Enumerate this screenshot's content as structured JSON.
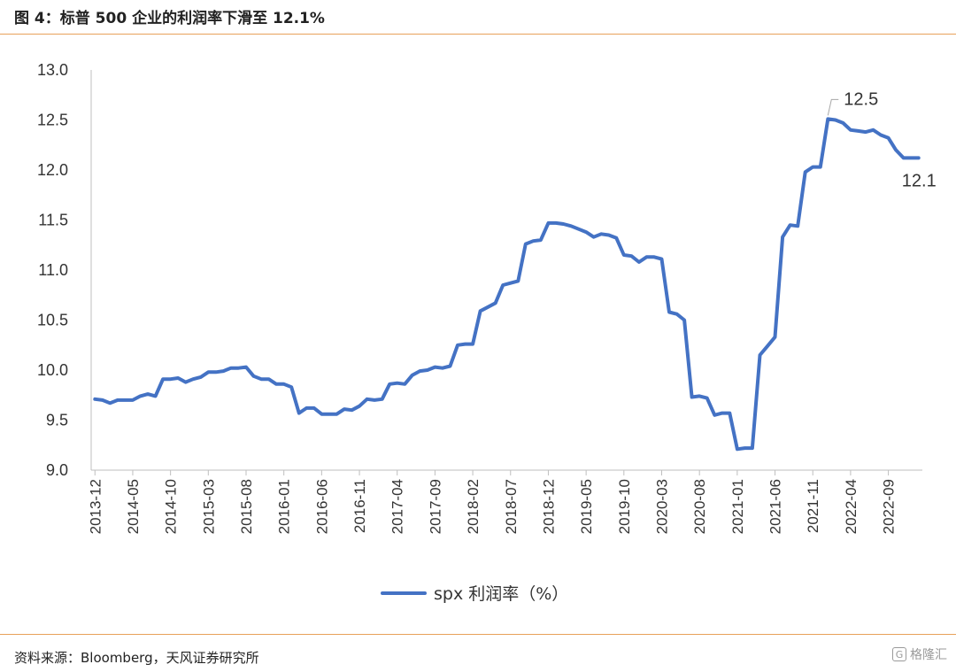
{
  "title": "图 4：标普 500 企业的利润率下滑至 12.1%",
  "source": "资料来源：Bloomberg，天风证券研究所",
  "watermark": {
    "text": "格隆汇",
    "icon": "G"
  },
  "chart_data": {
    "type": "line",
    "title": "",
    "xlabel": "",
    "ylabel": "",
    "ylim": [
      9.0,
      13.0
    ],
    "yticks": [
      "9.0",
      "9.5",
      "10.0",
      "10.5",
      "11.0",
      "11.5",
      "12.0",
      "12.5",
      "13.0"
    ],
    "xticks": [
      "2013-12",
      "2014-05",
      "2014-10",
      "2015-03",
      "2015-08",
      "2016-01",
      "2016-06",
      "2016-11",
      "2017-04",
      "2017-09",
      "2018-02",
      "2018-07",
      "2018-12",
      "2019-05",
      "2019-10",
      "2020-03",
      "2020-08",
      "2021-01",
      "2021-06",
      "2021-11",
      "2022-04",
      "2022-09"
    ],
    "grid": false,
    "legend_position": "bottom",
    "line_color": "#4472c4",
    "series": [
      {
        "name": "spx 利润率（%）",
        "x_start": "2013-12",
        "values": [
          9.71,
          9.7,
          9.67,
          9.7,
          9.7,
          9.7,
          9.74,
          9.76,
          9.74,
          9.91,
          9.91,
          9.92,
          9.88,
          9.91,
          9.93,
          9.98,
          9.98,
          9.99,
          10.02,
          10.02,
          10.03,
          9.94,
          9.91,
          9.91,
          9.86,
          9.86,
          9.83,
          9.57,
          9.62,
          9.62,
          9.56,
          9.56,
          9.56,
          9.61,
          9.6,
          9.64,
          9.71,
          9.7,
          9.71,
          9.86,
          9.87,
          9.86,
          9.95,
          9.99,
          10.0,
          10.03,
          10.02,
          10.04,
          10.25,
          10.26,
          10.26,
          10.59,
          10.63,
          10.67,
          10.85,
          10.87,
          10.89,
          11.26,
          11.29,
          11.3,
          11.47,
          11.47,
          11.46,
          11.44,
          11.41,
          11.38,
          11.33,
          11.36,
          11.35,
          11.32,
          11.15,
          11.14,
          11.08,
          11.13,
          11.13,
          11.11,
          10.58,
          10.56,
          10.5,
          9.73,
          9.74,
          9.72,
          9.55,
          9.57,
          9.57,
          9.21,
          9.22,
          9.22,
          10.15,
          10.24,
          10.33,
          11.33,
          11.45,
          11.44,
          11.98,
          12.03,
          12.03,
          12.51,
          12.5,
          12.47,
          12.4,
          12.39,
          12.38,
          12.4,
          12.35,
          12.32,
          12.2,
          12.12,
          12.12,
          12.12
        ]
      }
    ],
    "annotations": [
      {
        "text": "12.5",
        "index": 97
      },
      {
        "text": "12.1",
        "index": 109
      }
    ]
  }
}
